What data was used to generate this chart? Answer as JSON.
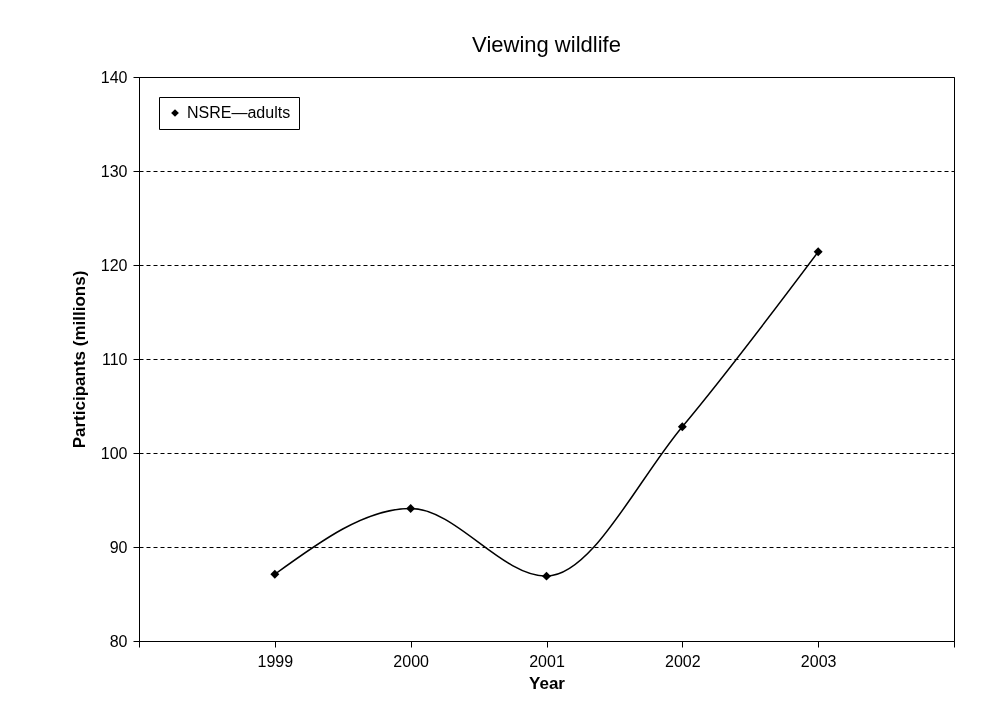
{
  "chart_data": {
    "type": "line",
    "title": "Viewing wildlife",
    "xlabel": "Year",
    "ylabel": "Participants (millions)",
    "x": [
      1999,
      2000,
      2001,
      2002,
      2003
    ],
    "series": [
      {
        "name": "NSRE—adults",
        "color": "#000000",
        "values": [
          87.1,
          94.1,
          86.9,
          102.8,
          121.4
        ]
      }
    ],
    "xlim": [
      1998,
      2004
    ],
    "xticks": [
      {
        "value": 1998,
        "label": null
      },
      1999,
      2000,
      2001,
      2002,
      2003,
      {
        "value": 2004,
        "label": null
      }
    ],
    "ylim": [
      80,
      140
    ],
    "yticks": [
      80,
      90,
      100,
      110,
      120,
      130,
      140
    ],
    "grid": "y",
    "legend": "top left",
    "marker": "diamond",
    "line_style": "solid"
  }
}
